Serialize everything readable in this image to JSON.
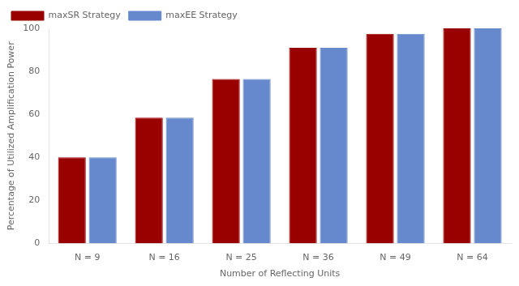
{
  "chart_data": {
    "type": "bar",
    "categories": [
      "N = 9",
      "N = 16",
      "N = 25",
      "N = 36",
      "N = 49",
      "N = 64"
    ],
    "series": [
      {
        "name": "maxSR Strategy",
        "color": "#990000",
        "values": [
          40.0,
          58.5,
          76.5,
          91.0,
          97.5,
          100.0
        ]
      },
      {
        "name": "maxEE Strategy",
        "color": "#6688CC",
        "values": [
          40.0,
          58.5,
          76.5,
          91.0,
          97.5,
          100.0
        ]
      }
    ],
    "xlabel": "Number of Reflecting Units",
    "ylabel": "Percentage of Utilized Amplification Power",
    "ylim": [
      0,
      100
    ],
    "yticks": [
      0,
      20,
      40,
      60,
      80,
      100
    ],
    "grid": false,
    "legend": "upper left"
  }
}
